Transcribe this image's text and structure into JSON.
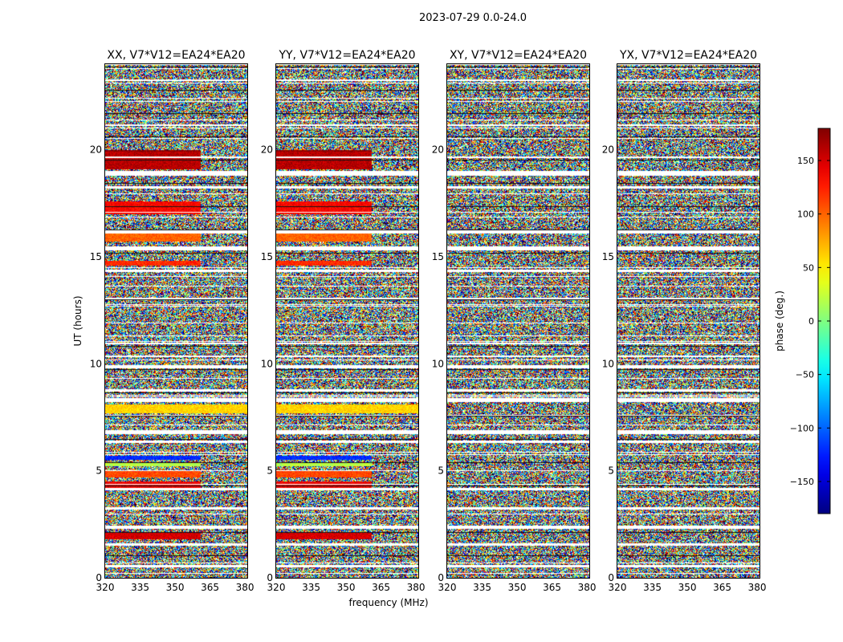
{
  "chart_data": {
    "type": "heatmap",
    "title": "2023-07-29 0.0-24.0",
    "xlabel": "frequency (MHz)",
    "ylabel": "UT (hours)",
    "xlim": [
      320,
      381
    ],
    "ylim": [
      0,
      24
    ],
    "x_ticks": [
      320,
      335,
      350,
      365,
      380
    ],
    "y_ticks": [
      0,
      5,
      10,
      15,
      20
    ],
    "panels": [
      {
        "name": "XX, V7*V12=EA24*EA20",
        "pol": "XX"
      },
      {
        "name": "YY, V7*V12=EA24*EA20",
        "pol": "YY"
      },
      {
        "name": "XY, V7*V12=EA24*EA20",
        "pol": "XY"
      },
      {
        "name": "YX, V7*V12=EA24*EA20",
        "pol": "YX"
      }
    ],
    "colorbar": {
      "label": "phase (deg.)",
      "range": [
        -180,
        180
      ],
      "ticks": [
        150,
        100,
        50,
        0,
        -50,
        -100,
        -150
      ],
      "tick_labels": [
        "150",
        "100",
        "50",
        "0",
        "−50",
        "−100",
        "−150"
      ],
      "colormap": "jet"
    },
    "coherent_bands_parallel": [
      {
        "t0": 19.1,
        "t1": 19.9,
        "f_end": 361,
        "phase": 160
      },
      {
        "t0": 19.9,
        "t1": 20.0,
        "f_end": 361,
        "phase": 175
      },
      {
        "t0": 17.0,
        "t1": 17.6,
        "f_end": 361,
        "phase": 135
      },
      {
        "t0": 15.7,
        "t1": 16.1,
        "f_end": 361,
        "phase": 100
      },
      {
        "t0": 14.6,
        "t1": 14.8,
        "f_end": 361,
        "phase": 120
      },
      {
        "t0": 7.7,
        "t1": 8.1,
        "f_end": 381,
        "phase": 60
      },
      {
        "t0": 5.5,
        "t1": 5.7,
        "f_end": 361,
        "phase": -120
      },
      {
        "t0": 5.2,
        "t1": 5.4,
        "f_end": 361,
        "phase": 20
      },
      {
        "t0": 4.7,
        "t1": 5.0,
        "f_end": 361,
        "phase": 110
      },
      {
        "t0": 4.2,
        "t1": 4.5,
        "f_end": 361,
        "phase": 140
      },
      {
        "t0": 1.8,
        "t1": 2.1,
        "f_end": 361,
        "phase": 150
      }
    ],
    "flagged_gaps": [
      [
        23.2,
        23.3
      ],
      [
        21.1,
        21.2
      ],
      [
        18.8,
        19.0
      ],
      [
        18.2,
        18.3
      ],
      [
        16.1,
        16.2
      ],
      [
        15.3,
        15.5
      ],
      [
        14.3,
        14.4
      ],
      [
        13.0,
        13.1
      ],
      [
        10.9,
        11.0
      ],
      [
        10.3,
        10.4
      ],
      [
        9.8,
        9.9
      ],
      [
        8.7,
        8.8
      ],
      [
        8.2,
        8.4
      ],
      [
        6.7,
        6.9
      ],
      [
        6.3,
        6.4
      ],
      [
        4.1,
        4.2
      ],
      [
        3.2,
        3.3
      ],
      [
        2.3,
        2.4
      ],
      [
        1.5,
        1.6
      ],
      [
        0.5,
        0.6
      ]
    ]
  }
}
